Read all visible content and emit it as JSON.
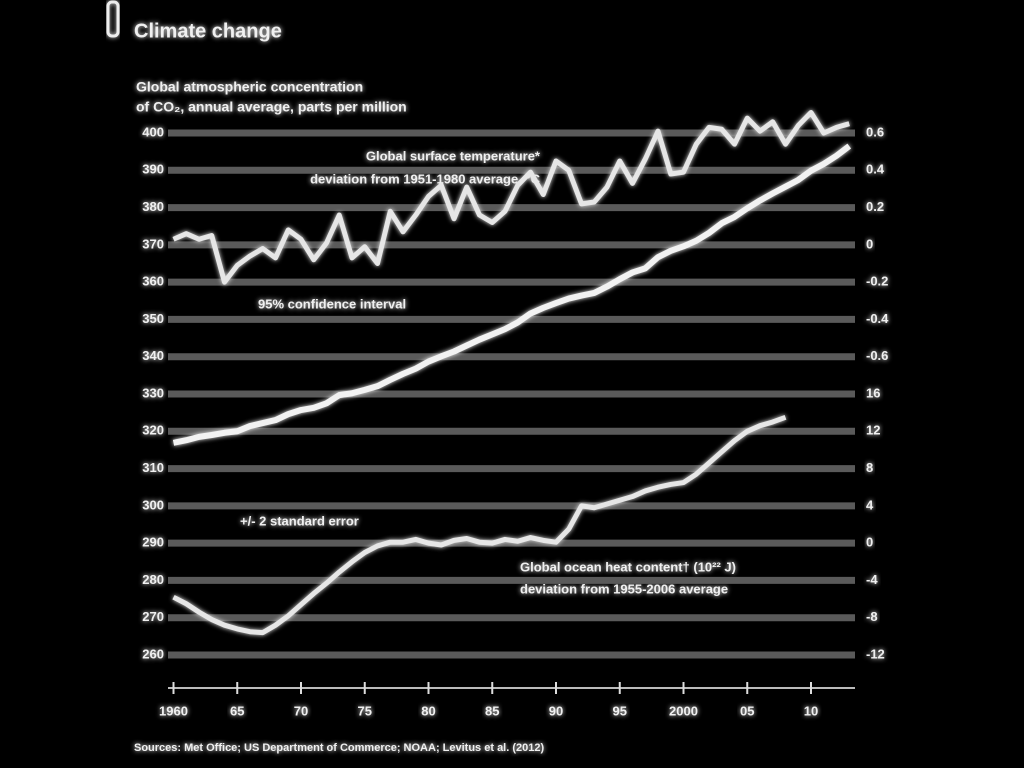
{
  "chart_data": {
    "type": "line",
    "title": "Climate change",
    "subtitle": [
      "Global atmospheric concentration",
      "of CO₂, annual average, parts per million"
    ],
    "annotations": [
      "Global surface temperature*",
      "deviation from 1951-1980 average, °C",
      "95% confidence interval",
      "+/- 2 standard error",
      "Global ocean heat content† (10²² J)",
      "deviation from 1955-2006 average"
    ],
    "source": "Sources: Met Office; US Department of Commerce; NOAA; Levitus et al. (2012)",
    "x": [
      1960,
      1961,
      1962,
      1963,
      1964,
      1965,
      1966,
      1967,
      1968,
      1969,
      1970,
      1971,
      1972,
      1973,
      1974,
      1975,
      1976,
      1977,
      1978,
      1979,
      1980,
      1981,
      1982,
      1983,
      1984,
      1985,
      1986,
      1987,
      1988,
      1989,
      1990,
      1991,
      1992,
      1993,
      1994,
      1995,
      1996,
      1997,
      1998,
      1999,
      2000,
      2001,
      2002,
      2003,
      2004,
      2005,
      2006,
      2007,
      2008,
      2009,
      2010,
      2011,
      2012,
      2013
    ],
    "xlim": [
      1958,
      2014
    ],
    "xticks": [
      1960,
      {
        "value": 1965,
        "label": "65"
      },
      {
        "value": 1970,
        "label": "70"
      },
      {
        "value": 1975,
        "label": "75"
      },
      {
        "value": 1980,
        "label": "80"
      },
      {
        "value": 1985,
        "label": "85"
      },
      {
        "value": 1990,
        "label": "90"
      },
      {
        "value": 1995,
        "label": "95"
      },
      2000,
      {
        "value": 2005,
        "label": "05"
      },
      {
        "value": 2010,
        "label": "10"
      }
    ],
    "ylim": [
      260,
      400
    ],
    "yticks": [
      400,
      390,
      380,
      370,
      360,
      350,
      340,
      330,
      320,
      310,
      300,
      290,
      280,
      270,
      260
    ],
    "y2lim": [
      -2.2,
      0.6
    ],
    "y2ticks": [
      0.6,
      0.4,
      0.2,
      0,
      -0.2,
      -0.4,
      -0.6
    ],
    "y3lim": [
      -12,
      44
    ],
    "y3ticks": [
      16,
      12,
      8,
      4,
      0,
      -4,
      -8,
      -12
    ],
    "grid": true,
    "series": [
      {
        "name": "CO₂",
        "color": "#f2f2f2",
        "values": [
          316.9,
          317.6,
          318.5,
          319.0,
          319.6,
          320.0,
          321.4,
          322.2,
          323.0,
          324.6,
          325.7,
          326.3,
          327.5,
          329.7,
          330.2,
          331.1,
          332.1,
          333.8,
          335.4,
          336.8,
          338.7,
          340.1,
          341.4,
          343.0,
          344.6,
          346.0,
          347.4,
          349.2,
          351.6,
          353.1,
          354.4,
          355.6,
          356.4,
          357.1,
          358.8,
          360.8,
          362.6,
          363.7,
          366.7,
          368.4,
          369.6,
          371.1,
          373.2,
          375.8,
          377.5,
          379.8,
          381.9,
          383.8,
          385.6,
          387.4,
          389.9,
          391.7,
          393.9,
          396.5
        ]
      },
      {
        "name": "Temperature",
        "color": "#e6e6e6",
        "axis": "y2",
        "values": [
          0.03,
          0.06,
          0.03,
          0.05,
          -0.2,
          -0.11,
          -0.06,
          -0.02,
          -0.07,
          0.08,
          0.03,
          -0.08,
          0.01,
          0.16,
          -0.07,
          -0.01,
          -0.1,
          0.18,
          0.07,
          0.16,
          0.26,
          0.32,
          0.14,
          0.31,
          0.16,
          0.12,
          0.18,
          0.32,
          0.39,
          0.27,
          0.45,
          0.4,
          0.22,
          0.23,
          0.31,
          0.45,
          0.33,
          0.46,
          0.61,
          0.38,
          0.39,
          0.54,
          0.63,
          0.62,
          0.54,
          0.68,
          0.61,
          0.66,
          0.54,
          0.64,
          0.71,
          0.6,
          0.63,
          0.65
        ]
      },
      {
        "name": "Heat content",
        "color": "#e6e6e6",
        "axis": "y3",
        "values": [
          -5.8,
          -6.5,
          -7.4,
          -8.2,
          -8.8,
          -9.2,
          -9.5,
          -9.6,
          -8.8,
          -7.8,
          -6.6,
          -5.4,
          -4.3,
          -3.1,
          -2.0,
          -1.0,
          -0.3,
          0.1,
          0.1,
          0.4,
          0.0,
          -0.2,
          0.3,
          0.5,
          0.1,
          0.0,
          0.4,
          0.2,
          0.6,
          0.3,
          0.1,
          1.5,
          4.0,
          3.8,
          4.2,
          4.6,
          5.0,
          5.6,
          6.0,
          6.3,
          6.5,
          7.4,
          8.6,
          9.8,
          11.0,
          12.0,
          12.6,
          13.0,
          13.5,
          null,
          null,
          null,
          null,
          null
        ]
      }
    ]
  }
}
